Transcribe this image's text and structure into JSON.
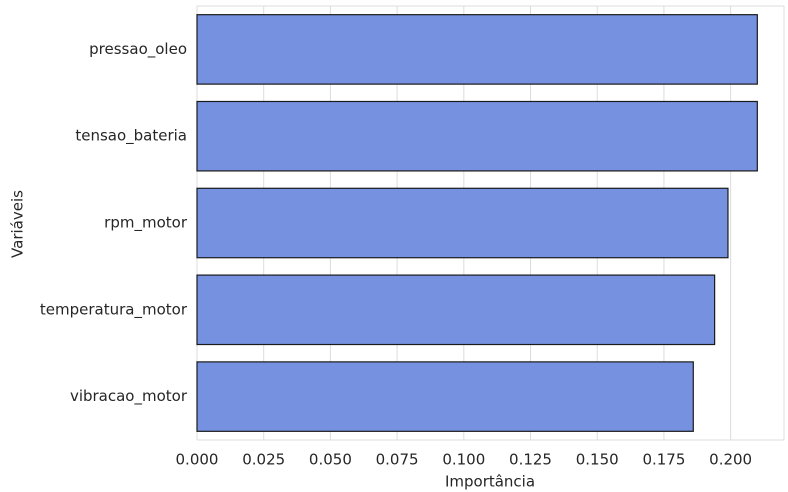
{
  "chart_data": {
    "type": "barh",
    "categories": [
      "pressao_oleo",
      "tensao_bateria",
      "rpm_motor",
      "temperatura_motor",
      "vibracao_motor"
    ],
    "values": [
      0.21,
      0.21,
      0.199,
      0.194,
      0.186
    ],
    "color": "#7591e0",
    "edge_color": "#1a1a1a",
    "x_label": "Importância",
    "y_label": "Variáveis",
    "xlim": [
      0,
      0.22
    ],
    "xticks": [
      {
        "value": 0,
        "label": "0.000"
      },
      {
        "value": 0.025,
        "label": "0.025"
      },
      {
        "value": 0.05,
        "label": "0.050"
      },
      {
        "value": 0.075,
        "label": "0.075"
      },
      {
        "value": 0.1,
        "label": "0.100"
      },
      {
        "value": 0.125,
        "label": "0.125"
      },
      {
        "value": 0.15,
        "label": "0.150"
      },
      {
        "value": 0.175,
        "label": "0.175"
      },
      {
        "value": 0.2,
        "label": "0.200"
      }
    ],
    "grid": true
  }
}
